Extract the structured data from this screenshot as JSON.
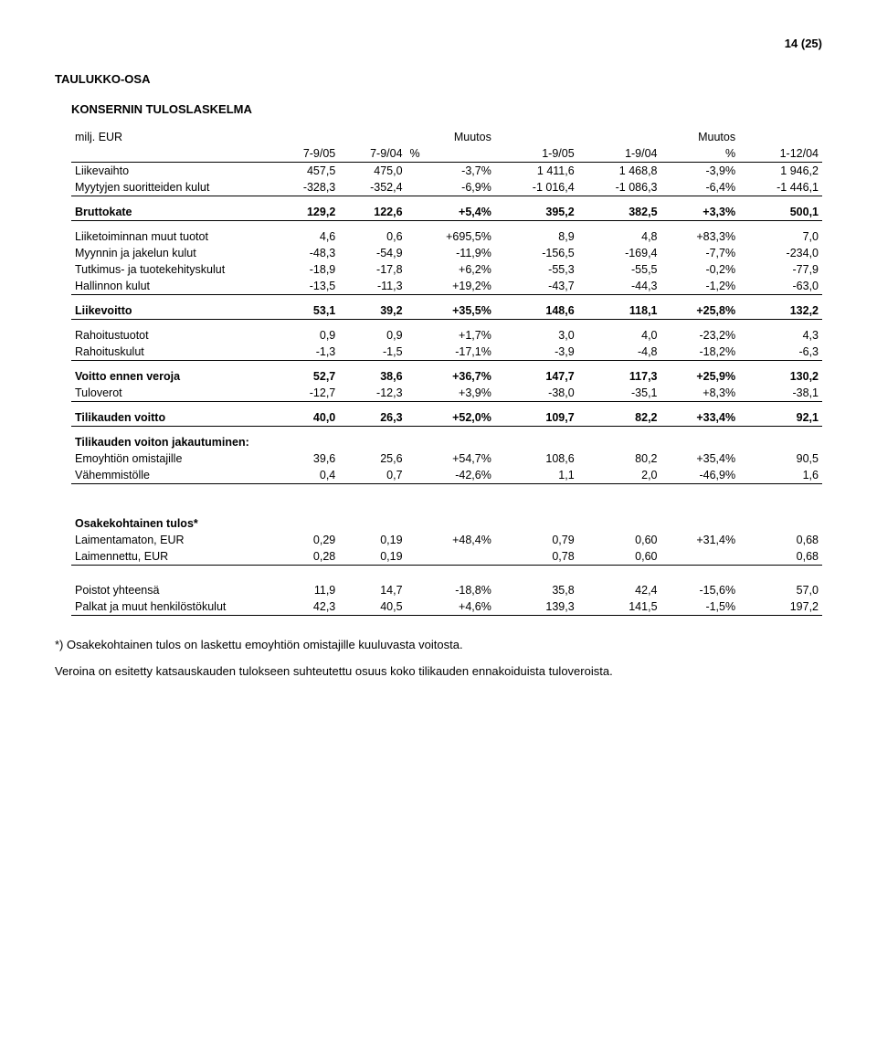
{
  "page_number": "14 (25)",
  "section_title": "TAULUKKO-OSA",
  "subsection_title": "KONSERNIN TULOSLASKELMA",
  "header": {
    "c0": "milj. EUR",
    "c1": "7-9/05",
    "c2": "7-9/04",
    "c3_top": "Muutos",
    "c3_bot": "%",
    "c4": "1-9/05",
    "c5": "1-9/04",
    "c6_top": "Muutos",
    "c6_bot": "%",
    "c7": "1-12/04"
  },
  "rows": [
    {
      "label": "Liikevaihto",
      "c1": "457,5",
      "c2": "475,0",
      "c3": "-3,7%",
      "c4": "1 411,6",
      "c5": "1 468,8",
      "c6": "-3,9%",
      "c7": "1 946,2",
      "style": ""
    },
    {
      "label": "Myytyjen suoritteiden kulut",
      "c1": "-328,3",
      "c2": "-352,4",
      "c3": "-6,9%",
      "c4": "-1 016,4",
      "c5": "-1 086,3",
      "c6": "-6,4%",
      "c7": "-1 446,1",
      "style": "line-below"
    },
    {
      "label": "Bruttokate",
      "c1": "129,2",
      "c2": "122,6",
      "c3": "+5,4%",
      "c4": "395,2",
      "c5": "382,5",
      "c6": "+3,3%",
      "c7": "500,1",
      "style": "bold line-below spacer"
    },
    {
      "label": "Liiketoiminnan muut tuotot",
      "c1": "4,6",
      "c2": "0,6",
      "c3": "+695,5%",
      "c4": "8,9",
      "c5": "4,8",
      "c6": "+83,3%",
      "c7": "7,0",
      "style": "spacer"
    },
    {
      "label": "Myynnin ja jakelun kulut",
      "c1": "-48,3",
      "c2": "-54,9",
      "c3": "-11,9%",
      "c4": "-156,5",
      "c5": "-169,4",
      "c6": "-7,7%",
      "c7": "-234,0",
      "style": ""
    },
    {
      "label": "Tutkimus- ja tuotekehityskulut",
      "c1": "-18,9",
      "c2": "-17,8",
      "c3": "+6,2%",
      "c4": "-55,3",
      "c5": "-55,5",
      "c6": "-0,2%",
      "c7": "-77,9",
      "style": ""
    },
    {
      "label": "Hallinnon kulut",
      "c1": "-13,5",
      "c2": "-11,3",
      "c3": "+19,2%",
      "c4": "-43,7",
      "c5": "-44,3",
      "c6": "-1,2%",
      "c7": "-63,0",
      "style": "line-below"
    },
    {
      "label": "Liikevoitto",
      "c1": "53,1",
      "c2": "39,2",
      "c3": "+35,5%",
      "c4": "148,6",
      "c5": "118,1",
      "c6": "+25,8%",
      "c7": "132,2",
      "style": "bold line-below spacer"
    },
    {
      "label": "Rahoitustuotot",
      "c1": "0,9",
      "c2": "0,9",
      "c3": "+1,7%",
      "c4": "3,0",
      "c5": "4,0",
      "c6": "-23,2%",
      "c7": "4,3",
      "style": "spacer"
    },
    {
      "label": "Rahoituskulut",
      "c1": "-1,3",
      "c2": "-1,5",
      "c3": "-17,1%",
      "c4": "-3,9",
      "c5": "-4,8",
      "c6": "-18,2%",
      "c7": "-6,3",
      "style": "line-below"
    },
    {
      "label": "Voitto ennen veroja",
      "c1": "52,7",
      "c2": "38,6",
      "c3": "+36,7%",
      "c4": "147,7",
      "c5": "117,3",
      "c6": "+25,9%",
      "c7": "130,2",
      "style": "bold spacer"
    },
    {
      "label": "Tuloverot",
      "c1": "-12,7",
      "c2": "-12,3",
      "c3": "+3,9%",
      "c4": "-38,0",
      "c5": "-35,1",
      "c6": "+8,3%",
      "c7": "-38,1",
      "style": "line-below"
    },
    {
      "label": "Tilikauden voitto",
      "c1": "40,0",
      "c2": "26,3",
      "c3": "+52,0%",
      "c4": "109,7",
      "c5": "82,2",
      "c6": "+33,4%",
      "c7": "92,1",
      "style": "bold line-below spacer"
    },
    {
      "label": "Tilikauden voiton jakautuminen:",
      "c1": "",
      "c2": "",
      "c3": "",
      "c4": "",
      "c5": "",
      "c6": "",
      "c7": "",
      "style": "bold spacer"
    },
    {
      "label": "Emoyhtiön omistajille",
      "c1": "39,6",
      "c2": "25,6",
      "c3": "+54,7%",
      "c4": "108,6",
      "c5": "80,2",
      "c6": "+35,4%",
      "c7": "90,5",
      "style": ""
    },
    {
      "label": "Vähemmistölle",
      "c1": "0,4",
      "c2": "0,7",
      "c3": "-42,6%",
      "c4": "1,1",
      "c5": "2,0",
      "c6": "-46,9%",
      "c7": "1,6",
      "style": "line-below"
    }
  ],
  "rows2": [
    {
      "label": "Osakekohtainen tulos*",
      "c1": "",
      "c2": "",
      "c3": "",
      "c4": "",
      "c5": "",
      "c6": "",
      "c7": "",
      "style": "bold"
    },
    {
      "label": "Laimentamaton, EUR",
      "c1": "0,29",
      "c2": "0,19",
      "c3": "+48,4%",
      "c4": "0,79",
      "c5": "0,60",
      "c6": "+31,4%",
      "c7": "0,68",
      "style": ""
    },
    {
      "label": "Laimennettu, EUR",
      "c1": "0,28",
      "c2": "0,19",
      "c3": "",
      "c4": "0,78",
      "c5": "0,60",
      "c6": "",
      "c7": "0,68",
      "style": "line-below"
    }
  ],
  "rows3": [
    {
      "label": "Poistot yhteensä",
      "c1": "11,9",
      "c2": "14,7",
      "c3": "-18,8%",
      "c4": "35,8",
      "c5": "42,4",
      "c6": "-15,6%",
      "c7": "57,0",
      "style": ""
    },
    {
      "label": "Palkat ja muut henkilöstökulut",
      "c1": "42,3",
      "c2": "40,5",
      "c3": "+4,6%",
      "c4": "139,3",
      "c5": "141,5",
      "c6": "-1,5%",
      "c7": "197,2",
      "style": "line-below"
    }
  ],
  "footnotes": [
    "*) Osakekohtainen tulos on laskettu emoyhtiön omistajille kuuluvasta voitosta.",
    "Veroina on esitetty katsauskauden tulokseen suhteutettu osuus koko tilikauden ennakoiduista tuloveroista."
  ]
}
